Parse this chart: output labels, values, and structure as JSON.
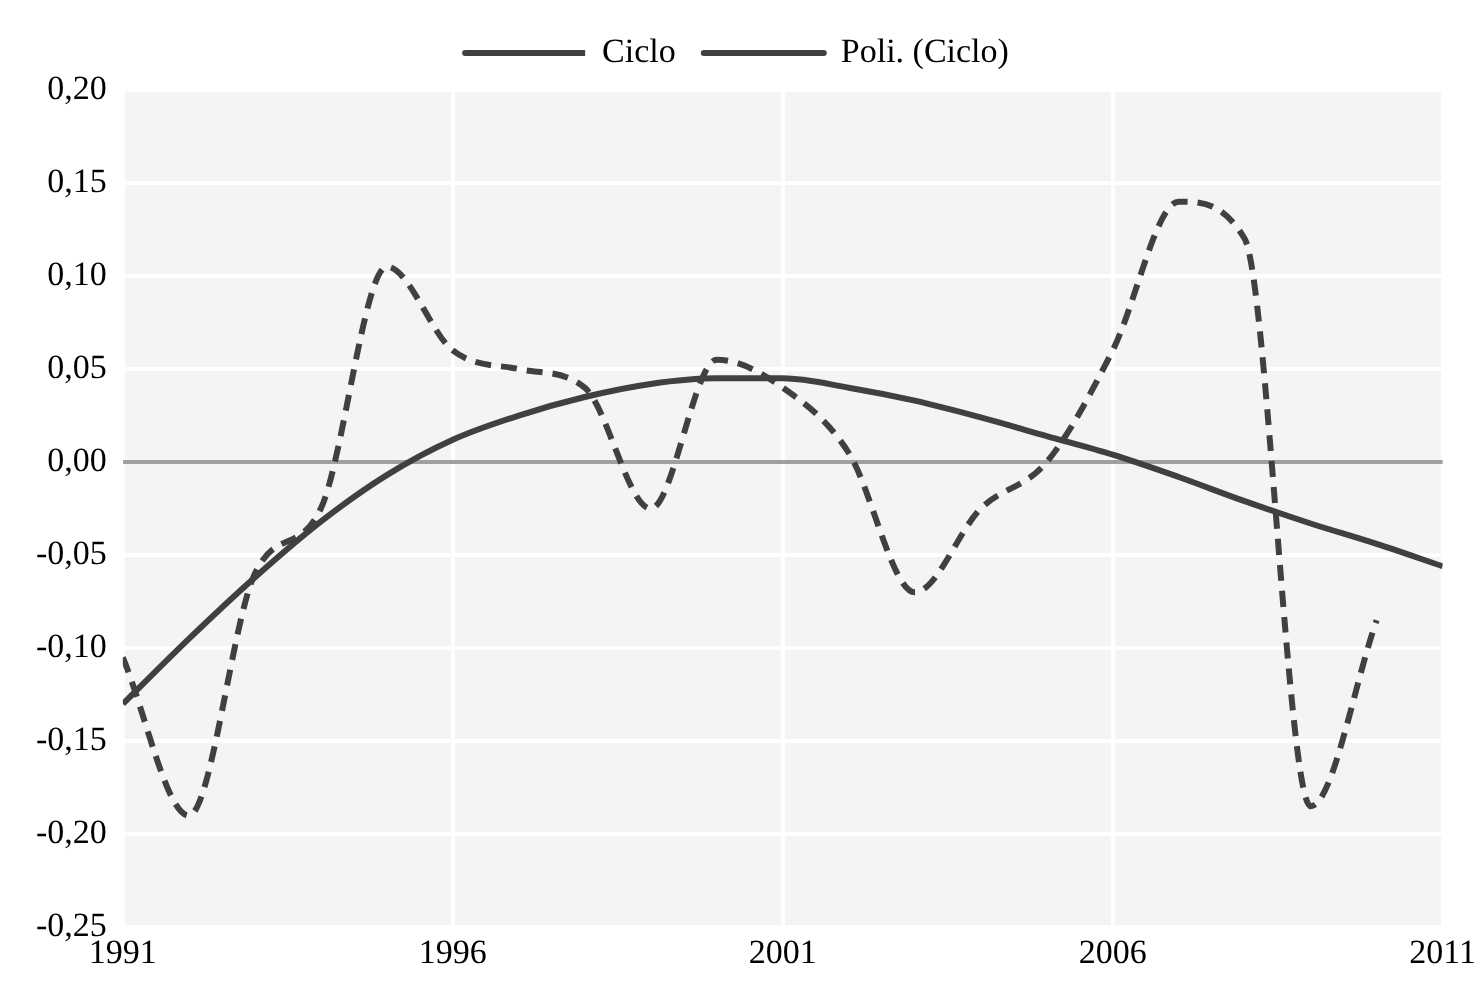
{
  "chart_data": {
    "type": "line",
    "x": [
      1991,
      1992,
      1993,
      1994,
      1995,
      1996,
      1997,
      1998,
      1999,
      2000,
      2001,
      2002,
      2003,
      2004,
      2005,
      2006,
      2007,
      2008,
      2009,
      2010
    ],
    "series": [
      {
        "name": "Ciclo",
        "color": "#404040",
        "line_style": "dashed",
        "values": [
          -0.105,
          -0.19,
          -0.06,
          -0.025,
          0.105,
          0.06,
          0.05,
          0.04,
          -0.025,
          0.055,
          0.04,
          0.005,
          -0.07,
          -0.025,
          0.0,
          0.06,
          0.14,
          0.12,
          -0.185,
          -0.085
        ]
      },
      {
        "name": "Poli. (Ciclo)",
        "color": "#404040",
        "line_style": "solid",
        "x": [
          1991,
          1992,
          1993,
          1994,
          1995,
          1996,
          1997,
          1998,
          1999,
          2000,
          2001,
          2002,
          2003,
          2004,
          2005,
          2006,
          2007,
          2008,
          2009,
          2010,
          2011
        ],
        "values": [
          -0.13,
          -0.095,
          -0.062,
          -0.032,
          -0.007,
          0.012,
          0.025,
          0.035,
          0.042,
          0.045,
          0.045,
          0.04,
          0.033,
          0.024,
          0.014,
          0.004,
          -0.008,
          -0.021,
          -0.033,
          -0.044,
          -0.056
        ]
      }
    ],
    "xlim": [
      1991,
      2011
    ],
    "xticks": [
      1991,
      1996,
      2001,
      2006,
      2011
    ],
    "ylim": [
      -0.25,
      0.2
    ],
    "yticks": [
      {
        "value": -0.25,
        "label": "-0,25"
      },
      {
        "value": -0.2,
        "label": "-0,20"
      },
      {
        "value": -0.15,
        "label": "-0,15"
      },
      {
        "value": -0.1,
        "label": "-0,10"
      },
      {
        "value": -0.05,
        "label": "-0,05"
      },
      {
        "value": 0,
        "label": "0,00"
      },
      {
        "value": 0.05,
        "label": "0,05"
      },
      {
        "value": 0.1,
        "label": "0,10"
      },
      {
        "value": 0.15,
        "label": "0,15"
      },
      {
        "value": 0.2,
        "label": "0,20"
      }
    ],
    "grid": true,
    "legend": "top",
    "marker": "none"
  }
}
